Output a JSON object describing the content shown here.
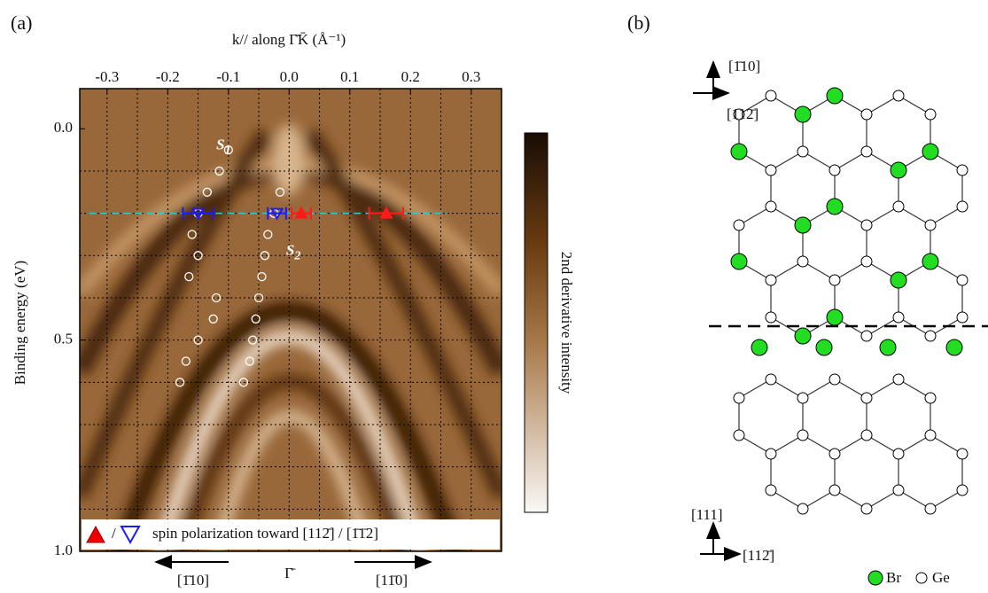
{
  "panel_labels": [
    "(a)",
    "(b)"
  ],
  "chart_data": {
    "type": "scatter",
    "x_label": "k// along Γ̄K̄ (Å⁻¹)",
    "y_label": "Binding energy (eV)",
    "colorbar_label": "2nd derivative intensity",
    "xlim": [
      -0.345,
      0.35
    ],
    "ylim": [
      1.0,
      -0.095
    ],
    "xticks": [
      -0.3,
      -0.2,
      -0.1,
      {
        "value": 0,
        "label": "0.0"
      },
      0.1,
      0.2,
      0.3
    ],
    "yticks": [
      {
        "value": 0,
        "label": "0.0"
      },
      0.5,
      {
        "value": 1,
        "label": "1.0"
      }
    ],
    "xgrid": [
      -0.3,
      -0.25,
      -0.2,
      -0.15,
      -0.1,
      -0.05,
      0,
      0.05,
      0.1,
      0.15,
      0.2,
      0.25,
      0.3
    ],
    "ygrid": [
      0.1,
      0.2,
      0.3,
      0.4,
      0.5,
      0.6,
      0.7,
      0.8,
      0.9
    ],
    "series": [
      {
        "color": "#ffffff",
        "x": [
          -0.1,
          -0.115,
          -0.135,
          -0.15,
          -0.16,
          -0.15,
          -0.165,
          -0.12,
          -0.125,
          -0.15,
          -0.17,
          -0.18
        ],
        "values": [
          0.05,
          0.1,
          0.15,
          0.2,
          0.25,
          0.3,
          0.35,
          0.4,
          0.45,
          0.5,
          0.55,
          0.6
        ]
      },
      {
        "color": "#ffffff",
        "x": [
          -0.015,
          -0.025,
          -0.035,
          -0.04,
          -0.045,
          -0.05,
          -0.055,
          -0.06,
          -0.065,
          -0.075
        ],
        "values": [
          0.15,
          0.2,
          0.25,
          0.3,
          0.35,
          0.4,
          0.45,
          0.5,
          0.55,
          0.6
        ]
      }
    ],
    "spin_markers": [
      {
        "color": "#1a1aff",
        "direction": "down",
        "x": [
          -0.15,
          -0.02
        ],
        "values": [
          0.2,
          0.2
        ],
        "errors": [
          0.025,
          0.015
        ]
      },
      {
        "color": "#ff1a1a",
        "direction": "up",
        "x": [
          0.02,
          0.16
        ],
        "values": [
          0.2,
          0.2
        ],
        "errors": [
          0.016,
          0.028
        ]
      }
    ],
    "cut_energy": 0.2,
    "annotations": [
      {
        "text": "S",
        "subscript": "1",
        "x": -0.12,
        "y": 0.04
      },
      {
        "text": "S",
        "subscript": "2",
        "x": -0.005,
        "y": 0.29
      }
    ],
    "legend_text": "spin polarization toward [112̄] / [1̄1̄2]",
    "legend_separator": "/",
    "bottom_labels": [
      "[1̄10]",
      "Γ̄",
      "[11̄0]"
    ]
  },
  "diagram": {
    "top_axis_labels": [
      "[1̄10]",
      "[112̄]"
    ],
    "bottom_axis_labels": [
      "[111]",
      "[112̄]"
    ],
    "legend": [
      "Br",
      "Ge"
    ]
  }
}
